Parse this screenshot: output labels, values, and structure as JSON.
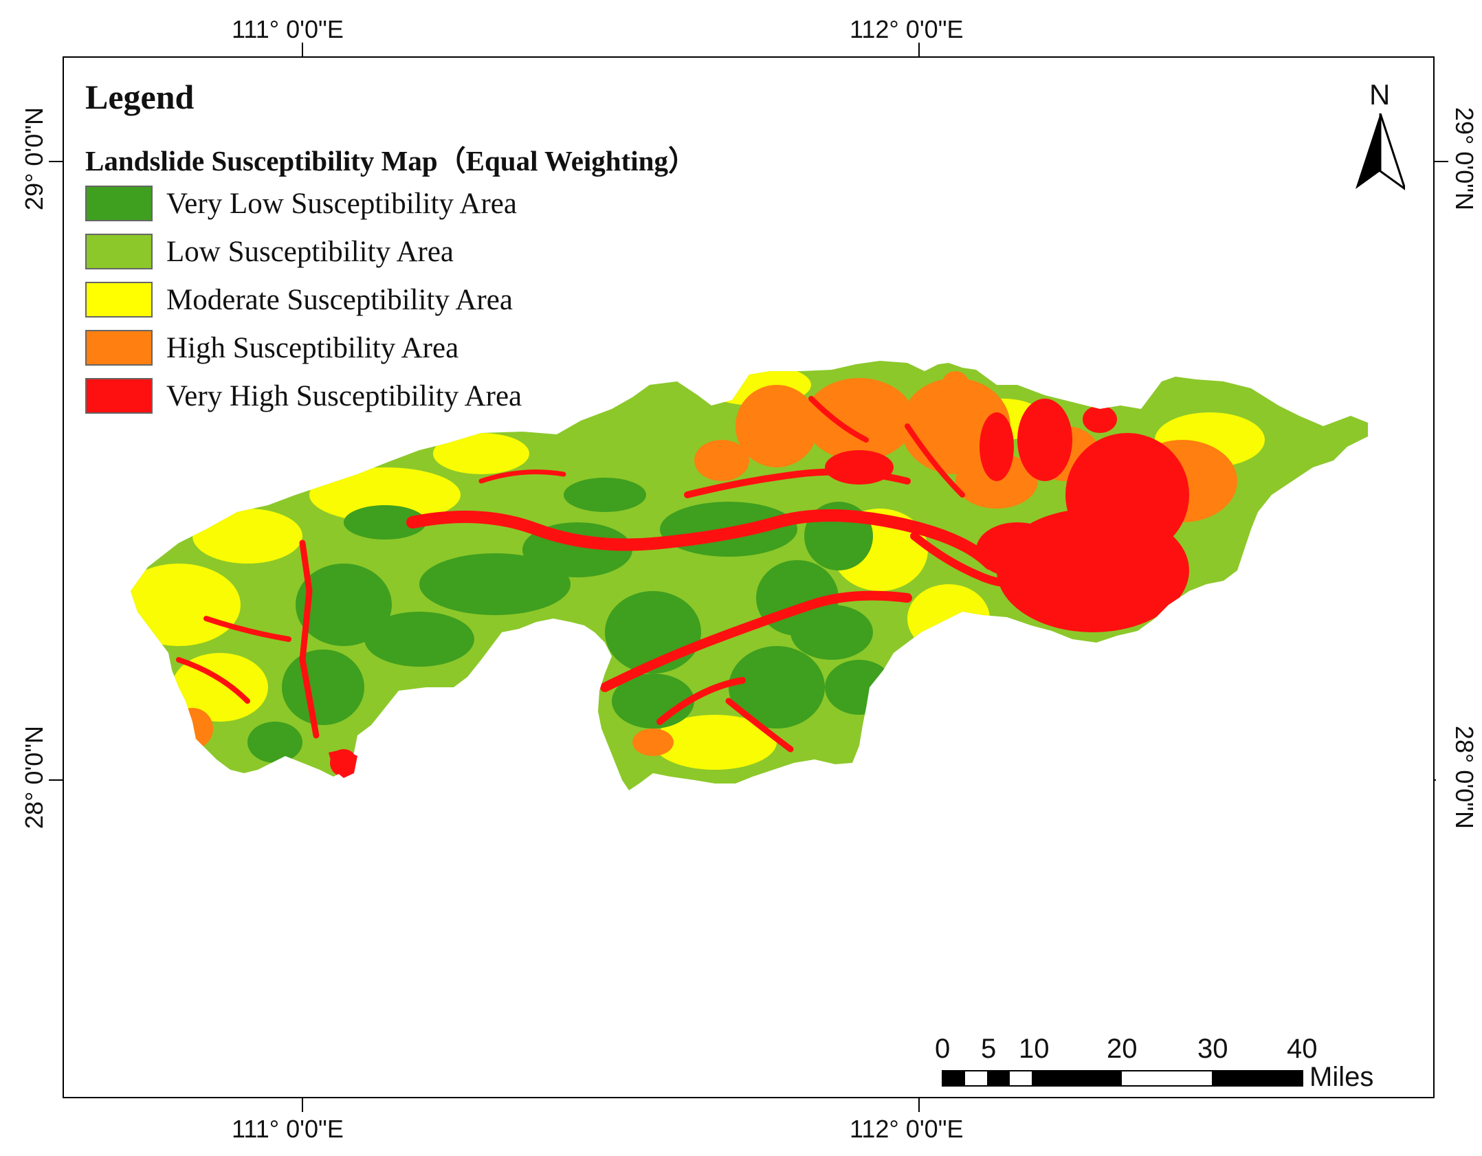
{
  "axes": {
    "top_labels": [
      "111° 0'0\"E",
      "112° 0'0\"E"
    ],
    "bottom_labels": [
      "111° 0'0\"E",
      "112° 0'0\"E"
    ],
    "left_labels": [
      "29° 0'0\"N",
      "28° 0'0\"N"
    ],
    "right_labels": [
      "29° 0'0\"N",
      "28° 0'0\"N"
    ]
  },
  "legend": {
    "title": "Legend",
    "subtitle": "Landslide Susceptibility Map（Equal Weighting）",
    "items": [
      {
        "label": "Very Low Susceptibility Area",
        "color": "#3f9f1f"
      },
      {
        "label": "Low Susceptibility Area",
        "color": "#8cc82a"
      },
      {
        "label": "Moderate Susceptibility Area",
        "color": "#ffff00"
      },
      {
        "label": "High Susceptibility Area",
        "color": "#ff7f10"
      },
      {
        "label": "Very High Susceptibility Area",
        "color": "#ff1010"
      }
    ]
  },
  "north_arrow": {
    "label": "N"
  },
  "scale_bar": {
    "ticks": [
      "0",
      "5",
      "10",
      "20",
      "30",
      "40"
    ],
    "unit": "Miles"
  }
}
